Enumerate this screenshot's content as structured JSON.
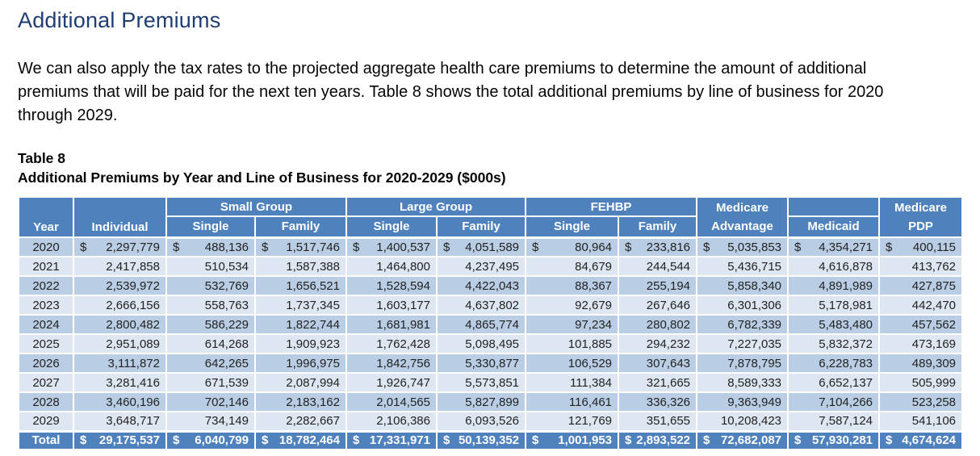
{
  "page": {
    "title": "Additional Premiums",
    "paragraph": "We can also apply the tax rates to the projected aggregate health care premiums to determine the amount of additional premiums that will be paid for the next ten years. Table 8 shows the total additional premiums by line of business for 2020 through 2029.",
    "table_label": "Table 8",
    "table_caption": "Additional Premiums by Year and Line of Business for 2020-2029 ($000s)"
  },
  "colors": {
    "title_blue": "#1f3e74",
    "header_blue": "#4f81bd",
    "band_dark": "#b9cde4",
    "band_light": "#dee7f1"
  },
  "table": {
    "currency_symbol": "$",
    "header": {
      "year": "Year",
      "individual": "Individual",
      "small_group": "Small Group",
      "large_group": "Large Group",
      "fehbp": "FEHBP",
      "sg_single": "Single",
      "sg_family": "Family",
      "lg_single": "Single",
      "lg_family": "Family",
      "fehbp_single": "Single",
      "fehbp_family": "Family",
      "medicare_advantage_line1": "Medicare",
      "medicare_advantage_line2": "Advantage",
      "medicaid": "Medicaid",
      "medicare_pdp_line1": "Medicare",
      "medicare_pdp_line2": "PDP"
    },
    "rows": [
      {
        "year": "2020",
        "dollar": true,
        "values": [
          "2,297,779",
          "488,136",
          "1,517,746",
          "1,400,537",
          "4,051,589",
          "80,964",
          "233,816",
          "5,035,853",
          "4,354,271",
          "400,115"
        ]
      },
      {
        "year": "2021",
        "dollar": false,
        "values": [
          "2,417,858",
          "510,534",
          "1,587,388",
          "1,464,800",
          "4,237,495",
          "84,679",
          "244,544",
          "5,436,715",
          "4,616,878",
          "413,762"
        ]
      },
      {
        "year": "2022",
        "dollar": false,
        "values": [
          "2,539,972",
          "532,769",
          "1,656,521",
          "1,528,594",
          "4,422,043",
          "88,367",
          "255,194",
          "5,858,340",
          "4,891,989",
          "427,875"
        ]
      },
      {
        "year": "2023",
        "dollar": false,
        "values": [
          "2,666,156",
          "558,763",
          "1,737,345",
          "1,603,177",
          "4,637,802",
          "92,679",
          "267,646",
          "6,301,306",
          "5,178,981",
          "442,470"
        ]
      },
      {
        "year": "2024",
        "dollar": false,
        "values": [
          "2,800,482",
          "586,229",
          "1,822,744",
          "1,681,981",
          "4,865,774",
          "97,234",
          "280,802",
          "6,782,339",
          "5,483,480",
          "457,562"
        ]
      },
      {
        "year": "2025",
        "dollar": false,
        "values": [
          "2,951,089",
          "614,268",
          "1,909,923",
          "1,762,428",
          "5,098,495",
          "101,885",
          "294,232",
          "7,227,035",
          "5,832,372",
          "473,169"
        ]
      },
      {
        "year": "2026",
        "dollar": false,
        "values": [
          "3,111,872",
          "642,265",
          "1,996,975",
          "1,842,756",
          "5,330,877",
          "106,529",
          "307,643",
          "7,878,795",
          "6,228,783",
          "489,309"
        ]
      },
      {
        "year": "2027",
        "dollar": false,
        "values": [
          "3,281,416",
          "671,539",
          "2,087,994",
          "1,926,747",
          "5,573,851",
          "111,384",
          "321,665",
          "8,589,333",
          "6,652,137",
          "505,999"
        ]
      },
      {
        "year": "2028",
        "dollar": false,
        "values": [
          "3,460,196",
          "702,146",
          "2,183,162",
          "2,014,565",
          "5,827,899",
          "116,461",
          "336,326",
          "9,363,949",
          "7,104,266",
          "523,258"
        ]
      },
      {
        "year": "2029",
        "dollar": false,
        "values": [
          "3,648,717",
          "734,149",
          "2,282,667",
          "2,106,386",
          "6,093,526",
          "121,769",
          "351,655",
          "10,208,423",
          "7,587,124",
          "541,106"
        ]
      }
    ],
    "total": {
      "label": "Total",
      "dollar": true,
      "values": [
        "29,175,537",
        "6,040,799",
        "18,782,464",
        "17,331,971",
        "50,139,352",
        "1,001,953",
        "2,893,522",
        "72,682,087",
        "57,930,281",
        "4,674,624"
      ]
    }
  }
}
